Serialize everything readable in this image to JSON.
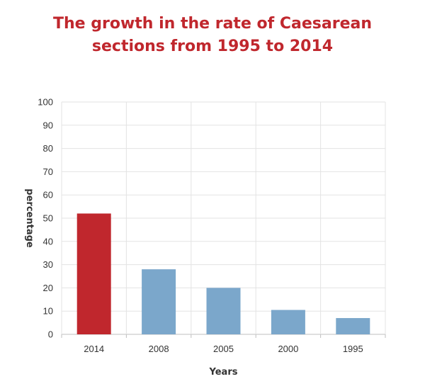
{
  "chart_data": {
    "type": "bar",
    "title_lines": [
      "The growth in the rate of Caesarean",
      "sections from 1995 to 2014"
    ],
    "categories": [
      "2014",
      "2008",
      "2005",
      "2000",
      "1995"
    ],
    "values": [
      52,
      28,
      20,
      10.5,
      7
    ],
    "xlabel": "Years",
    "ylabel": "percentage",
    "ylim": [
      0,
      100
    ],
    "yticks": [
      "0",
      "10",
      "20",
      "30",
      "40",
      "50",
      "60",
      "70",
      "80",
      "90",
      "100"
    ],
    "grid": true,
    "colors": [
      "#c0272d",
      "#7ba7cb",
      "#7ba7cb",
      "#7ba7cb",
      "#7ba7cb"
    ]
  }
}
